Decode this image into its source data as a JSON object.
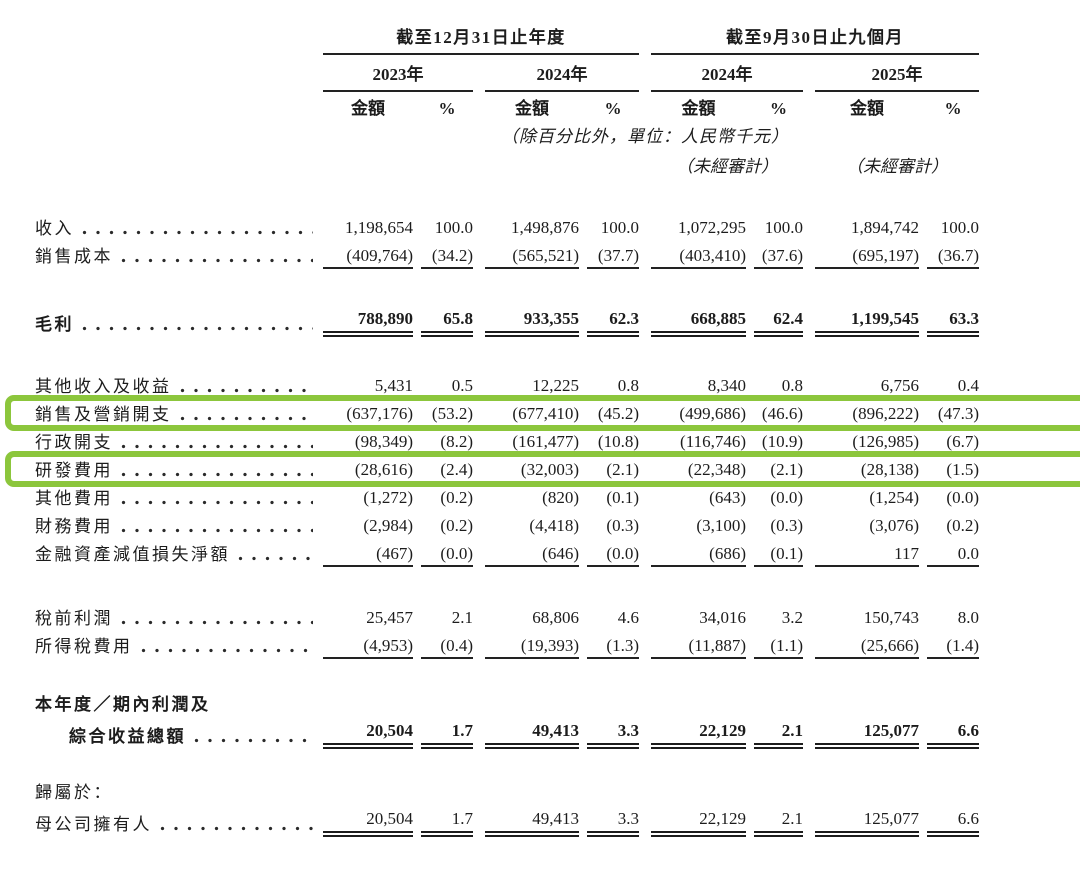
{
  "header": {
    "groups": [
      {
        "title": "截至12月31日止年度",
        "years": [
          "2023年",
          "2024年"
        ]
      },
      {
        "title": "截至9月30日止九個月",
        "years": [
          "2024年",
          "2025年"
        ]
      }
    ],
    "amount_label": "金額",
    "percent_label": "%",
    "unit_note": "（除百分比外，單位：人民幣千元）",
    "unaudited_note": "（未經審計）"
  },
  "rows": [
    {
      "label": "收入",
      "cells": [
        "1,198,654",
        "100.0",
        "1,498,876",
        "100.0",
        "1,072,295",
        "100.0",
        "1,894,742",
        "100.0"
      ]
    },
    {
      "label": "銷售成本",
      "cells": [
        "(409,764)",
        "(34.2)",
        "(565,521)",
        "(37.7)",
        "(403,410)",
        "(37.6)",
        "(695,197)",
        "(36.7)"
      ]
    },
    {
      "label": "毛利",
      "cells": [
        "788,890",
        "65.8",
        "933,355",
        "62.3",
        "668,885",
        "62.4",
        "1,199,545",
        "63.3"
      ]
    },
    {
      "label": "其他收入及收益",
      "cells": [
        "5,431",
        "0.5",
        "12,225",
        "0.8",
        "8,340",
        "0.8",
        "6,756",
        "0.4"
      ]
    },
    {
      "label": "銷售及營銷開支",
      "highlighted": true,
      "cells": [
        "(637,176)",
        "(53.2)",
        "(677,410)",
        "(45.2)",
        "(499,686)",
        "(46.6)",
        "(896,222)",
        "(47.3)"
      ]
    },
    {
      "label": "行政開支",
      "cells": [
        "(98,349)",
        "(8.2)",
        "(161,477)",
        "(10.8)",
        "(116,746)",
        "(10.9)",
        "(126,985)",
        "(6.7)"
      ]
    },
    {
      "label": "研發費用",
      "highlighted": true,
      "cells": [
        "(28,616)",
        "(2.4)",
        "(32,003)",
        "(2.1)",
        "(22,348)",
        "(2.1)",
        "(28,138)",
        "(1.5)"
      ]
    },
    {
      "label": "其他費用",
      "cells": [
        "(1,272)",
        "(0.2)",
        "(820)",
        "(0.1)",
        "(643)",
        "(0.0)",
        "(1,254)",
        "(0.0)"
      ]
    },
    {
      "label": "財務費用",
      "cells": [
        "(2,984)",
        "(0.2)",
        "(4,418)",
        "(0.3)",
        "(3,100)",
        "(0.3)",
        "(3,076)",
        "(0.2)"
      ]
    },
    {
      "label": "金融資產減值損失淨額",
      "cells": [
        "(467)",
        "(0.0)",
        "(646)",
        "(0.0)",
        "(686)",
        "(0.1)",
        "117",
        "0.0"
      ]
    },
    {
      "label": "稅前利潤",
      "cells": [
        "25,457",
        "2.1",
        "68,806",
        "4.6",
        "34,016",
        "3.2",
        "150,743",
        "8.0"
      ]
    },
    {
      "label": "所得稅費用",
      "cells": [
        "(4,953)",
        "(0.4)",
        "(19,393)",
        "(1.3)",
        "(11,887)",
        "(1.1)",
        "(25,666)",
        "(1.4)"
      ]
    },
    {
      "label": "本年度／期內利潤及"
    },
    {
      "label": "綜合收益總額",
      "cells": [
        "20,504",
        "1.7",
        "49,413",
        "3.3",
        "22,129",
        "2.1",
        "125,077",
        "6.6"
      ]
    },
    {
      "label": "歸屬於："
    },
    {
      "label": "母公司擁有人",
      "cells": [
        "20,504",
        "1.7",
        "49,413",
        "3.3",
        "22,129",
        "2.1",
        "125,077",
        "6.6"
      ]
    }
  ],
  "colors": {
    "highlight_box": "#8CC63C",
    "text": "#1C1C1C"
  }
}
